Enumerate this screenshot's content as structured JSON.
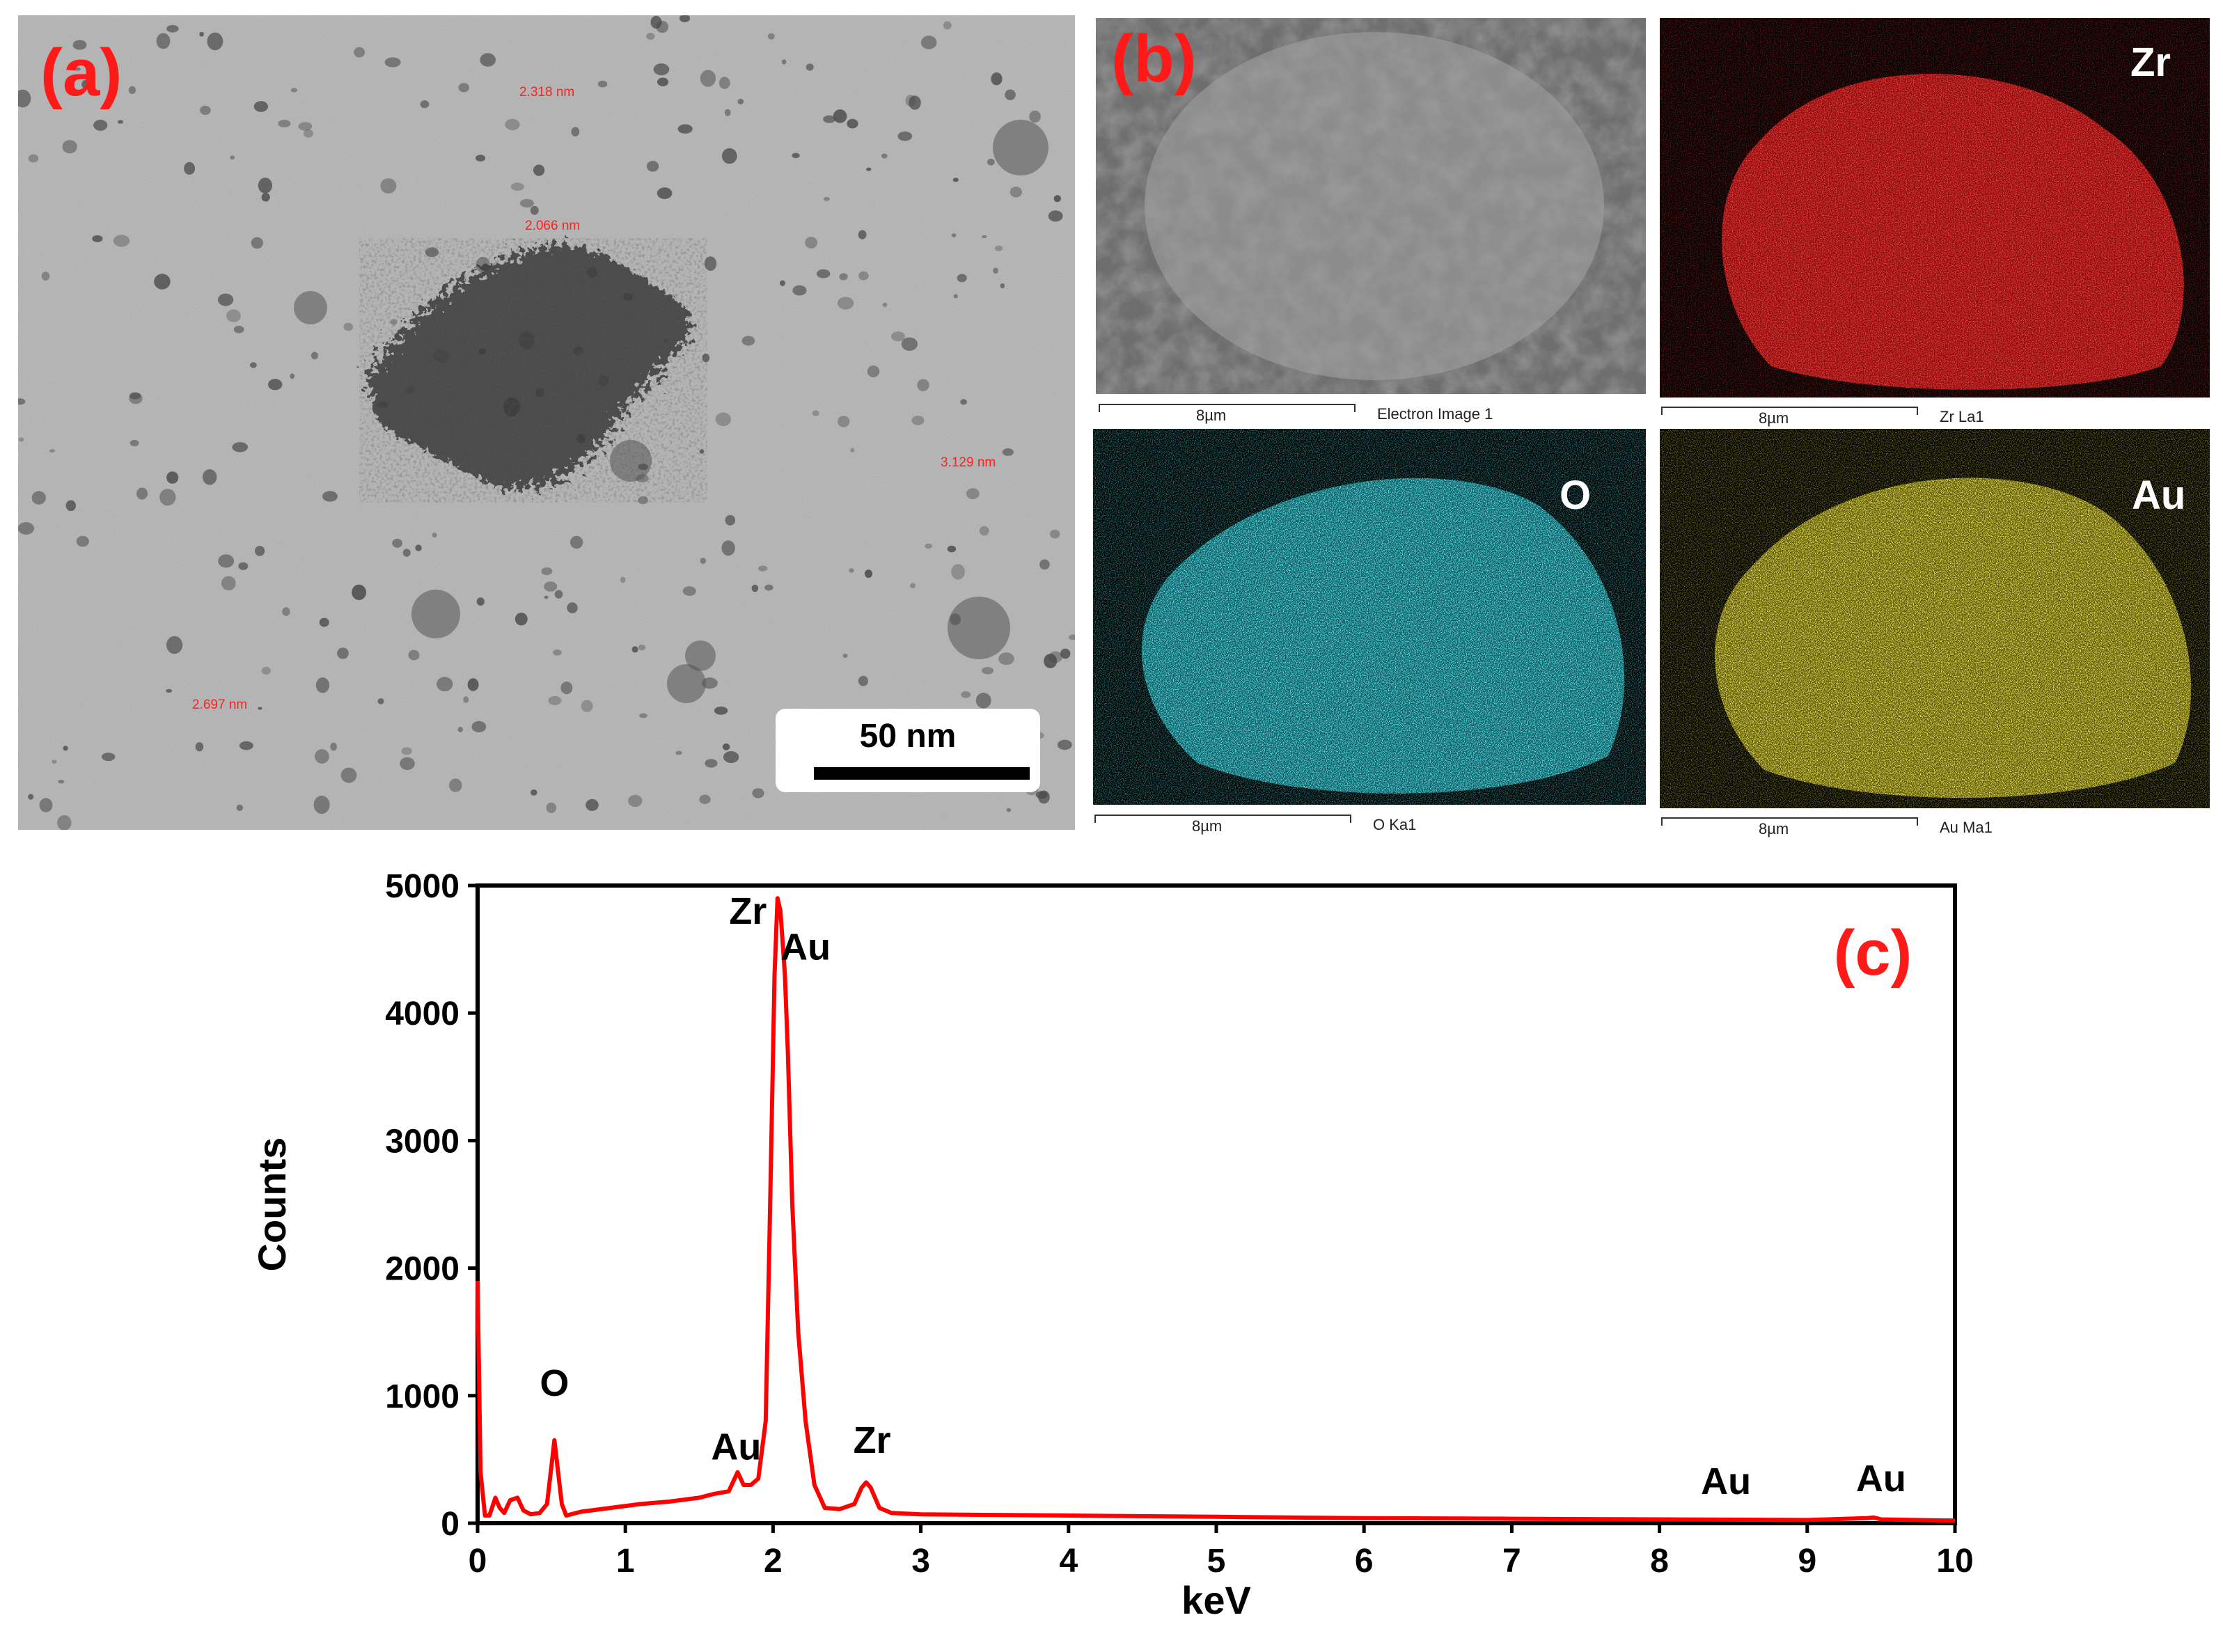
{
  "panel_a": {
    "label": "(a)",
    "measurements": [
      "2.318 nm",
      "2.066 nm",
      "3.129 nm",
      "2.697 nm"
    ],
    "scale_bar": "50 nm"
  },
  "panel_b": {
    "label": "(b)",
    "tiles": [
      {
        "element": "",
        "caption": "Electron Image 1",
        "scale": "8µm",
        "color": "#707070"
      },
      {
        "element": "Zr",
        "caption": "Zr La1",
        "scale": "8µm",
        "color": "#d01010"
      },
      {
        "element": "O",
        "caption": "O Ka1",
        "scale": "8µm",
        "color": "#18b8c4"
      },
      {
        "element": "Au",
        "caption": "Au Ma1",
        "scale": "8µm",
        "color": "#c4b81a"
      }
    ]
  },
  "panel_c": {
    "label": "(c)",
    "peak_labels": [
      {
        "text": "O",
        "x": 0.52,
        "y": 1000
      },
      {
        "text": "Au",
        "x": 1.75,
        "y": 500
      },
      {
        "text": "Zr",
        "x": 1.83,
        "y": 4700
      },
      {
        "text": "Au",
        "x": 2.22,
        "y": 4420
      },
      {
        "text": "Zr",
        "x": 2.67,
        "y": 550
      },
      {
        "text": "Au",
        "x": 8.45,
        "y": 230
      },
      {
        "text": "Au",
        "x": 9.5,
        "y": 250
      }
    ]
  },
  "chart_data": {
    "type": "line",
    "title": "",
    "xlabel": "keV",
    "ylabel": "Counts",
    "xlim": [
      0,
      10
    ],
    "ylim": [
      0,
      5000
    ],
    "xticks": [
      0,
      1,
      2,
      3,
      4,
      5,
      6,
      7,
      8,
      9,
      10
    ],
    "yticks": [
      0,
      1000,
      2000,
      3000,
      4000,
      5000
    ],
    "series_color": "#ff0000",
    "series": [
      {
        "x": [
          0.0,
          0.02,
          0.05,
          0.08,
          0.12,
          0.15,
          0.18,
          0.22,
          0.27,
          0.31,
          0.36,
          0.42,
          0.47,
          0.5,
          0.52,
          0.54,
          0.57,
          0.6,
          0.7,
          0.9,
          1.1,
          1.3,
          1.5,
          1.6,
          1.7,
          1.76,
          1.8,
          1.85,
          1.9,
          1.95,
          1.98,
          2.01,
          2.03,
          2.05,
          2.08,
          2.1,
          2.13,
          2.17,
          2.22,
          2.28,
          2.35,
          2.45,
          2.55,
          2.6,
          2.63,
          2.66,
          2.72,
          2.8,
          3.0,
          4.0,
          5.0,
          6.0,
          7.0,
          8.0,
          9.0,
          9.4,
          9.45,
          9.5,
          10.0
        ],
        "y": [
          1900,
          400,
          60,
          60,
          200,
          120,
          80,
          180,
          200,
          100,
          70,
          80,
          150,
          450,
          650,
          450,
          150,
          60,
          90,
          120,
          150,
          170,
          200,
          230,
          250,
          400,
          300,
          300,
          350,
          800,
          2500,
          4300,
          4900,
          4800,
          4300,
          3700,
          2500,
          1500,
          800,
          300,
          120,
          110,
          150,
          280,
          320,
          280,
          120,
          80,
          70,
          60,
          50,
          40,
          35,
          30,
          25,
          40,
          45,
          30,
          20
        ]
      }
    ]
  }
}
